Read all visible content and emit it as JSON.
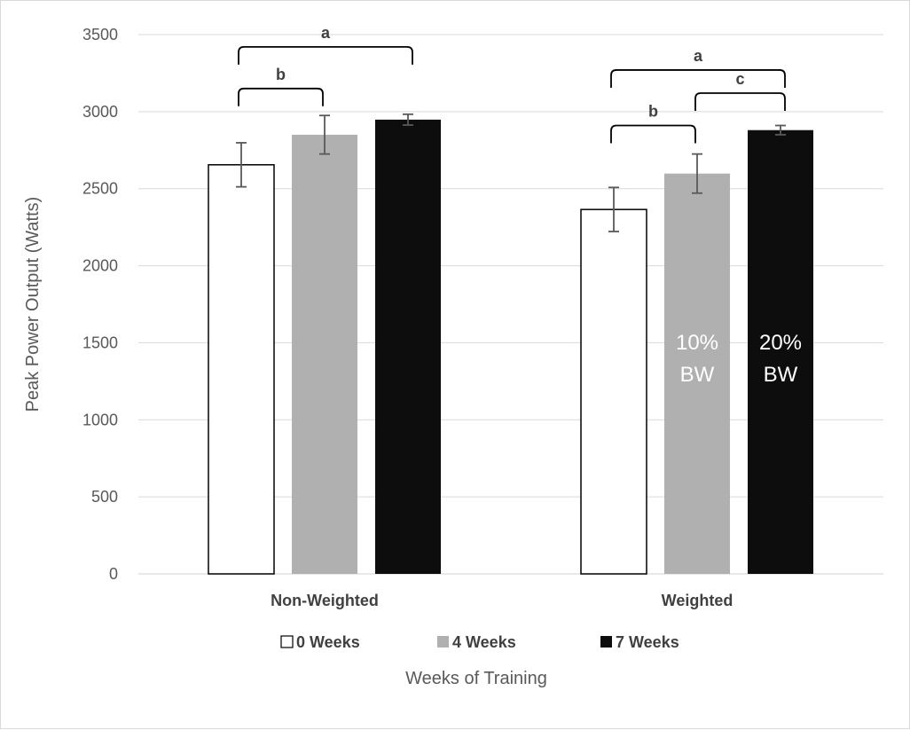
{
  "chart_data": {
    "type": "bar",
    "categories": [
      "Non-Weighted",
      "Weighted"
    ],
    "series": [
      {
        "name": "0 Weeks",
        "values": [
          2655,
          2365
        ],
        "errors": [
          143,
          143
        ],
        "color": "#ffffff"
      },
      {
        "name": "4 Weeks",
        "values": [
          2850,
          2598
        ],
        "errors": [
          125,
          127
        ],
        "color": "#b0b0b0"
      },
      {
        "name": "7 Weeks",
        "values": [
          2948,
          2880
        ],
        "errors": [
          35,
          30
        ],
        "color": "#0d0d0d"
      }
    ],
    "ylim": [
      0,
      3500
    ],
    "yticks": [
      0,
      500,
      1000,
      1500,
      2000,
      2500,
      3000,
      3500
    ],
    "ylabel": "Peak Power Output (Watts)",
    "xlabel": "Weeks of Training",
    "grid": true,
    "legend_position": "bottom",
    "significance": [
      {
        "group": 0,
        "from": 0,
        "to": 2,
        "label": "a",
        "level": 3420
      },
      {
        "group": 0,
        "from": 0,
        "to": 1,
        "label": "b",
        "level": 3150
      },
      {
        "group": 1,
        "from": 0,
        "to": 2,
        "label": "a",
        "level": 3270
      },
      {
        "group": 1,
        "from": 0,
        "to": 1,
        "label": "b",
        "level": 2910
      },
      {
        "group": 1,
        "from": 1,
        "to": 2,
        "label": "c",
        "level": 3120
      }
    ],
    "bar_annotations": [
      {
        "group": 1,
        "series": 1,
        "lines": [
          "10%",
          "BW"
        ]
      },
      {
        "group": 1,
        "series": 2,
        "lines": [
          "20%",
          "BW"
        ]
      }
    ]
  }
}
